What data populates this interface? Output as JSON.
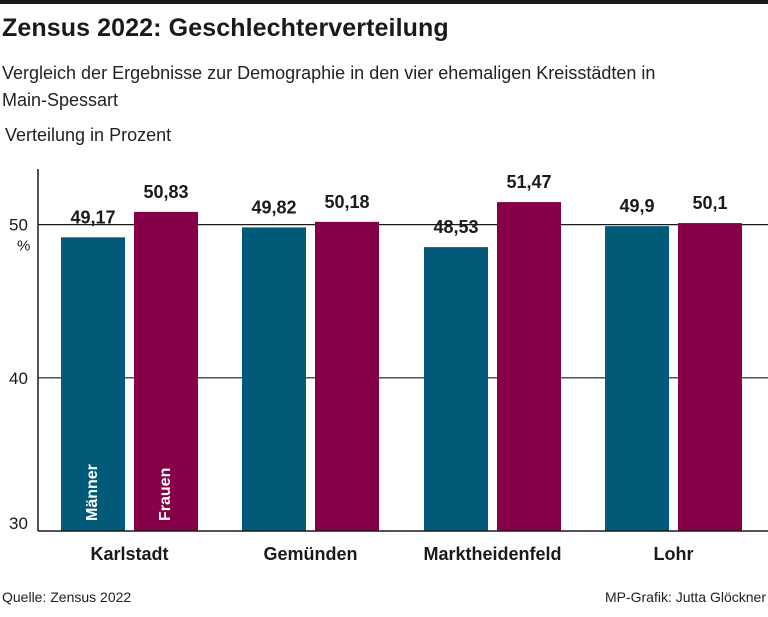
{
  "header": {
    "title": "Zensus 2022: Geschlechterverteilung",
    "subtitle": "Vergleich der Ergebnisse zur Demographie in den vier ehemaligen Kreisstädten in Main-Spessart",
    "unit_label": "Verteilung in Prozent"
  },
  "footer": {
    "source": "Quelle: Zensus 2022",
    "credit": "MP-Grafik: Jutta Glöckner"
  },
  "colors": {
    "men": "#005a78",
    "women": "#850047",
    "gridline": "#1a1a1a",
    "text": "#1a1a1a"
  },
  "chart_data": {
    "type": "bar",
    "categories": [
      "Karlstadt",
      "Gemünden",
      "Marktheidenfeld",
      "Lohr"
    ],
    "series": [
      {
        "name": "Männer",
        "values": [
          49.17,
          49.82,
          48.53,
          49.9
        ],
        "labels": [
          "49,17",
          "49,82",
          "48,53",
          "49,9"
        ]
      },
      {
        "name": "Frauen",
        "values": [
          50.83,
          50.18,
          51.47,
          50.1
        ],
        "labels": [
          "50,83",
          "50,18",
          "51,47",
          "50,1"
        ]
      }
    ],
    "ylim": [
      30,
      53.5
    ],
    "yticks": [
      30,
      40,
      50
    ],
    "ytick_labels": [
      "30",
      "40",
      "50"
    ],
    "yunit": "%",
    "grid": true,
    "legend": "inside first group bars"
  }
}
